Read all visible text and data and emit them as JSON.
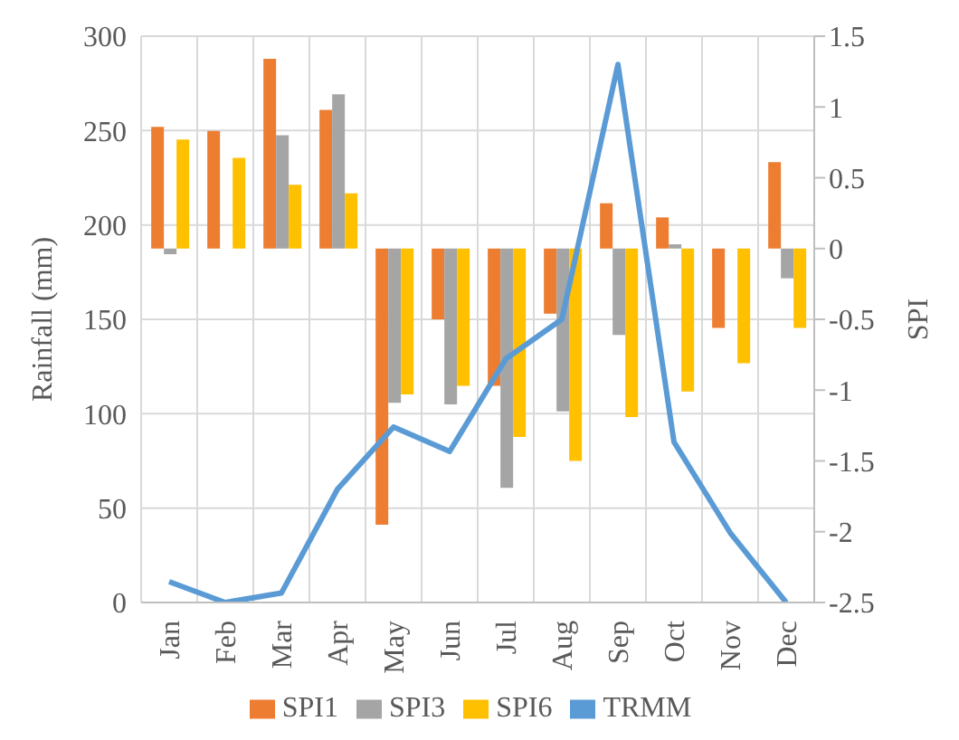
{
  "chart_data": {
    "type": "bar",
    "ylabel": "Rainfall (mm)",
    "y2label": "SPI",
    "categories": [
      "Jan",
      "Feb",
      "Mar",
      "Apr",
      "May",
      "Jun",
      "Jul",
      "Aug",
      "Sep",
      "Oct",
      "Nov",
      "Dec"
    ],
    "series": [
      {
        "name": "SPI1",
        "color": "#ed7d31",
        "axis": "y2",
        "values": [
          0.86,
          0.83,
          1.34,
          0.98,
          -1.95,
          -0.5,
          -0.97,
          -0.46,
          0.32,
          0.22,
          -0.56,
          0.61
        ]
      },
      {
        "name": "SPI3",
        "color": "#a5a5a5",
        "axis": "y2",
        "values": [
          -0.04,
          0,
          0.8,
          1.09,
          -1.09,
          -1.1,
          -1.69,
          -1.15,
          -0.61,
          0.03,
          0,
          -0.21
        ]
      },
      {
        "name": "SPI6",
        "color": "#ffc000",
        "axis": "y2",
        "values": [
          0.77,
          0.64,
          0.45,
          0.39,
          -1.03,
          -0.97,
          -1.33,
          -1.5,
          -1.19,
          -1.01,
          -0.81,
          -0.56
        ]
      },
      {
        "name": "TRMM",
        "color": "#5b9bd5",
        "type": "line",
        "values": [
          11,
          0,
          5,
          60,
          93,
          80,
          129,
          150,
          285,
          85,
          37,
          0
        ]
      }
    ],
    "ylim": [
      0,
      300
    ],
    "yticks": [
      0,
      50,
      100,
      150,
      200,
      250,
      300
    ],
    "y2lim": [
      -2.5,
      1.5
    ],
    "y2ticks": [
      -2.5,
      -2,
      -1.5,
      -1,
      -0.5,
      0,
      0.5,
      1,
      1.5
    ],
    "grid": true,
    "legend": "bottom",
    "marker": "none"
  }
}
